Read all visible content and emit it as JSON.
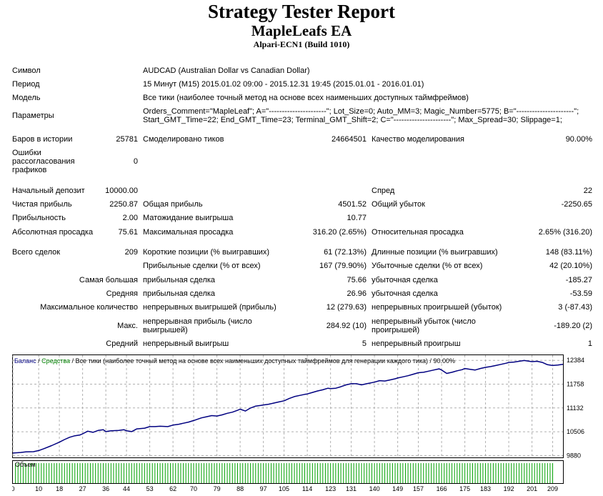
{
  "header": {
    "title": "Strategy Tester Report",
    "ea_name": "MapleLeafs EA",
    "server": "Alpari-ECN1 (Build 1010)"
  },
  "info": {
    "symbol_label": "Символ",
    "symbol_value": "AUDCAD (Australian Dollar vs Canadian Dollar)",
    "period_label": "Период",
    "period_value": "15 Минут (M15) 2015.01.02 09:00 - 2015.12.31 19:45 (2015.01.01 - 2016.01.01)",
    "model_label": "Модель",
    "model_value": "Все тики (наиболее точный метод на основе всех наименьших доступных таймфреймов)",
    "params_label": "Параметры",
    "params_line1": "Orders_Comment=\"MapleLeaf\"; A=\"----------------------\"; Lot_Size=0; Auto_MM=3; Magic_Number=5775; B=\"----------------------\";",
    "params_line2": "Start_GMT_Time=22; End_GMT_Time=23; Terminal_GMT_Shift=2; C=\"----------------------\"; Max_Spread=30; Slippage=1;"
  },
  "stats": {
    "bars_label": "Баров в истории",
    "bars_value": "25781",
    "ticks_label": "Смоделировано тиков",
    "ticks_value": "24664501",
    "quality_label": "Качество моделирования",
    "quality_value": "90.00%",
    "errors_label": "Ошибки рассогласования графиков",
    "errors_value": "0",
    "deposit_label": "Начальный депозит",
    "deposit_value": "10000.00",
    "spread_label": "Спред",
    "spread_value": "22",
    "net_label": "Чистая прибыль",
    "net_value": "2250.87",
    "gross_profit_label": "Общая прибыль",
    "gross_profit_value": "4501.52",
    "gross_loss_label": "Общий убыток",
    "gross_loss_value": "-2250.65",
    "pf_label": "Прибыльность",
    "pf_value": "2.00",
    "payoff_label": "Матожидание выигрыша",
    "payoff_value": "10.77",
    "abs_dd_label": "Абсолютная просадка",
    "abs_dd_value": "75.61",
    "max_dd_label": "Максимальная просадка",
    "max_dd_value": "316.20 (2.65%)",
    "rel_dd_label": "Относительная просадка",
    "rel_dd_value": "2.65% (316.20)",
    "trades_label": "Всего сделок",
    "trades_value": "209",
    "short_label": "Короткие позиции (% выигравших)",
    "short_value": "61 (72.13%)",
    "long_label": "Длинные позиции (% выигравших)",
    "long_value": "148 (83.11%)",
    "profit_trades_label": "Прибыльные сделки (% от всех)",
    "profit_trades_value": "167 (79.90%)",
    "loss_trades_label": "Убыточные сделки (% от всех)",
    "loss_trades_value": "42 (20.10%)",
    "largest_label": "Самая большая",
    "largest_profit_label": "прибыльная сделка",
    "largest_profit_value": "75.66",
    "largest_loss_label": "убыточная сделка",
    "largest_loss_value": "-185.27",
    "average_label": "Средняя",
    "avg_profit_label": "прибыльная сделка",
    "avg_profit_value": "26.96",
    "avg_loss_label": "убыточная сделка",
    "avg_loss_value": "-53.59",
    "maxcount_label": "Максимальное количество",
    "max_wins_label": "непрерывных выигрышей (прибыль)",
    "max_wins_value": "12 (279.63)",
    "max_losses_label": "непрерывных проигрышей (убыток)",
    "max_losses_value": "3 (-87.43)",
    "max_label": "Макс.",
    "max_cons_profit_label": "непрерывная прибыль (число выигрышей)",
    "max_cons_profit_value": "284.92 (10)",
    "max_cons_loss_label": "непрерывный убыток (число проигрышей)",
    "max_cons_loss_value": "-189.20 (2)",
    "avg2_label": "Средний",
    "avg_wins_label": "непрерывный выигрыш",
    "avg_wins_value": "5",
    "avg_losses_label": "непрерывный проигрыш",
    "avg_losses_value": "1"
  },
  "chart_data": {
    "type": "line",
    "legend": {
      "balance": "Баланс",
      "sep1": " / ",
      "equity": "Средства",
      "sep2": " / ",
      "rest": "Все тики (наиболее точный метод на основе всех наименьших доступных таймфреймов для генерации каждого тика) / 90.00%"
    },
    "volume_label": "Объем",
    "xlim": [
      0,
      213
    ],
    "ylim": [
      9830,
      12520
    ],
    "y_ticks": [
      9880,
      10506,
      11132,
      11758,
      12384
    ],
    "x_ticks": [
      0,
      10,
      18,
      27,
      36,
      44,
      53,
      62,
      70,
      79,
      88,
      97,
      105,
      114,
      123,
      131,
      140,
      149,
      157,
      166,
      175,
      183,
      192,
      201,
      209
    ],
    "series": [
      {
        "name": "Баланс",
        "color": "#000080",
        "points": [
          [
            0,
            9945
          ],
          [
            3,
            9960
          ],
          [
            5,
            9975
          ],
          [
            8,
            9980
          ],
          [
            10,
            10010
          ],
          [
            12,
            10060
          ],
          [
            15,
            10140
          ],
          [
            18,
            10230
          ],
          [
            20,
            10300
          ],
          [
            22,
            10360
          ],
          [
            24,
            10400
          ],
          [
            26,
            10420
          ],
          [
            27,
            10450
          ],
          [
            29,
            10520
          ],
          [
            31,
            10490
          ],
          [
            33,
            10540
          ],
          [
            35,
            10560
          ],
          [
            36,
            10510
          ],
          [
            38,
            10530
          ],
          [
            41,
            10540
          ],
          [
            43,
            10560
          ],
          [
            44,
            10530
          ],
          [
            46,
            10510
          ],
          [
            48,
            10580
          ],
          [
            51,
            10600
          ],
          [
            53,
            10640
          ],
          [
            55,
            10640
          ],
          [
            57,
            10650
          ],
          [
            60,
            10640
          ],
          [
            62,
            10680
          ],
          [
            64,
            10700
          ],
          [
            66,
            10730
          ],
          [
            68,
            10760
          ],
          [
            70,
            10800
          ],
          [
            73,
            10870
          ],
          [
            75,
            10900
          ],
          [
            77,
            10930
          ],
          [
            79,
            10920
          ],
          [
            81,
            10950
          ],
          [
            83,
            10990
          ],
          [
            85,
            11020
          ],
          [
            87,
            11070
          ],
          [
            88,
            11100
          ],
          [
            90,
            11050
          ],
          [
            92,
            11130
          ],
          [
            94,
            11180
          ],
          [
            96,
            11200
          ],
          [
            97,
            11210
          ],
          [
            99,
            11230
          ],
          [
            101,
            11260
          ],
          [
            103,
            11290
          ],
          [
            105,
            11320
          ],
          [
            107,
            11380
          ],
          [
            109,
            11430
          ],
          [
            111,
            11460
          ],
          [
            113,
            11490
          ],
          [
            114,
            11500
          ],
          [
            116,
            11540
          ],
          [
            118,
            11580
          ],
          [
            120,
            11610
          ],
          [
            122,
            11650
          ],
          [
            123,
            11640
          ],
          [
            125,
            11650
          ],
          [
            127,
            11690
          ],
          [
            129,
            11740
          ],
          [
            131,
            11770
          ],
          [
            133,
            11770
          ],
          [
            135,
            11740
          ],
          [
            137,
            11770
          ],
          [
            140,
            11810
          ],
          [
            142,
            11850
          ],
          [
            144,
            11840
          ],
          [
            146,
            11870
          ],
          [
            148,
            11900
          ],
          [
            149,
            11920
          ],
          [
            151,
            11950
          ],
          [
            153,
            11980
          ],
          [
            155,
            12020
          ],
          [
            157,
            12060
          ],
          [
            159,
            12070
          ],
          [
            161,
            12100
          ],
          [
            163,
            12130
          ],
          [
            165,
            12160
          ],
          [
            166,
            12130
          ],
          [
            168,
            12040
          ],
          [
            170,
            12070
          ],
          [
            172,
            12110
          ],
          [
            174,
            12140
          ],
          [
            175,
            12170
          ],
          [
            177,
            12150
          ],
          [
            179,
            12130
          ],
          [
            181,
            12170
          ],
          [
            183,
            12200
          ],
          [
            185,
            12220
          ],
          [
            187,
            12250
          ],
          [
            189,
            12280
          ],
          [
            191,
            12310
          ],
          [
            192,
            12330
          ],
          [
            194,
            12340
          ],
          [
            196,
            12360
          ],
          [
            198,
            12380
          ],
          [
            200,
            12360
          ],
          [
            201,
            12350
          ],
          [
            203,
            12360
          ],
          [
            205,
            12330
          ],
          [
            207,
            12270
          ],
          [
            209,
            12250
          ],
          [
            211,
            12260
          ],
          [
            213,
            12280
          ]
        ]
      }
    ],
    "volume_bars": 209
  }
}
